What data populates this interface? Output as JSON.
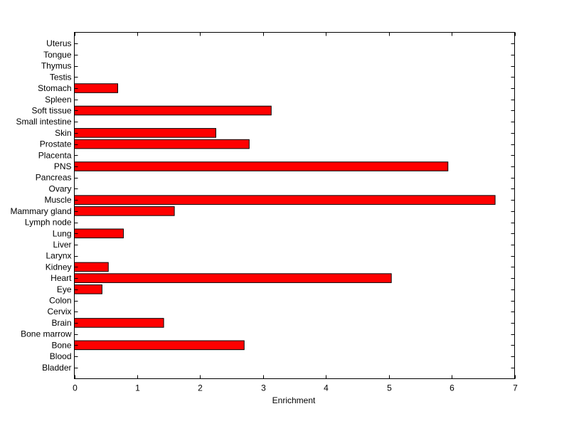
{
  "chart_data": {
    "type": "bar",
    "orientation": "horizontal",
    "title": "",
    "xlabel": "Enrichment",
    "ylabel": "",
    "xlim": [
      0,
      7
    ],
    "x_ticks": [
      0,
      1,
      2,
      3,
      4,
      5,
      6,
      7
    ],
    "grid": false,
    "bar_color": "#ff0000",
    "bar_edge_color": "#000000",
    "categories": [
      "Bladder",
      "Blood",
      "Bone",
      "Bone marrow",
      "Brain",
      "Cervix",
      "Colon",
      "Eye",
      "Heart",
      "Kidney",
      "Larynx",
      "Liver",
      "Lung",
      "Lymph node",
      "Mammary gland",
      "Muscle",
      "Ovary",
      "Pancreas",
      "PNS",
      "Placenta",
      "Prostate",
      "Skin",
      "Small intestine",
      "Soft tissue",
      "Spleen",
      "Stomach",
      "Testis",
      "Thymus",
      "Tongue",
      "Uterus"
    ],
    "values": [
      0,
      0,
      2.7,
      0,
      1.42,
      0,
      0,
      0.44,
      5.04,
      0.54,
      0,
      0,
      0.78,
      0,
      1.59,
      6.69,
      0,
      0,
      5.94,
      0,
      2.78,
      2.25,
      0,
      3.13,
      0,
      0.69,
      0,
      0,
      0,
      0
    ]
  }
}
